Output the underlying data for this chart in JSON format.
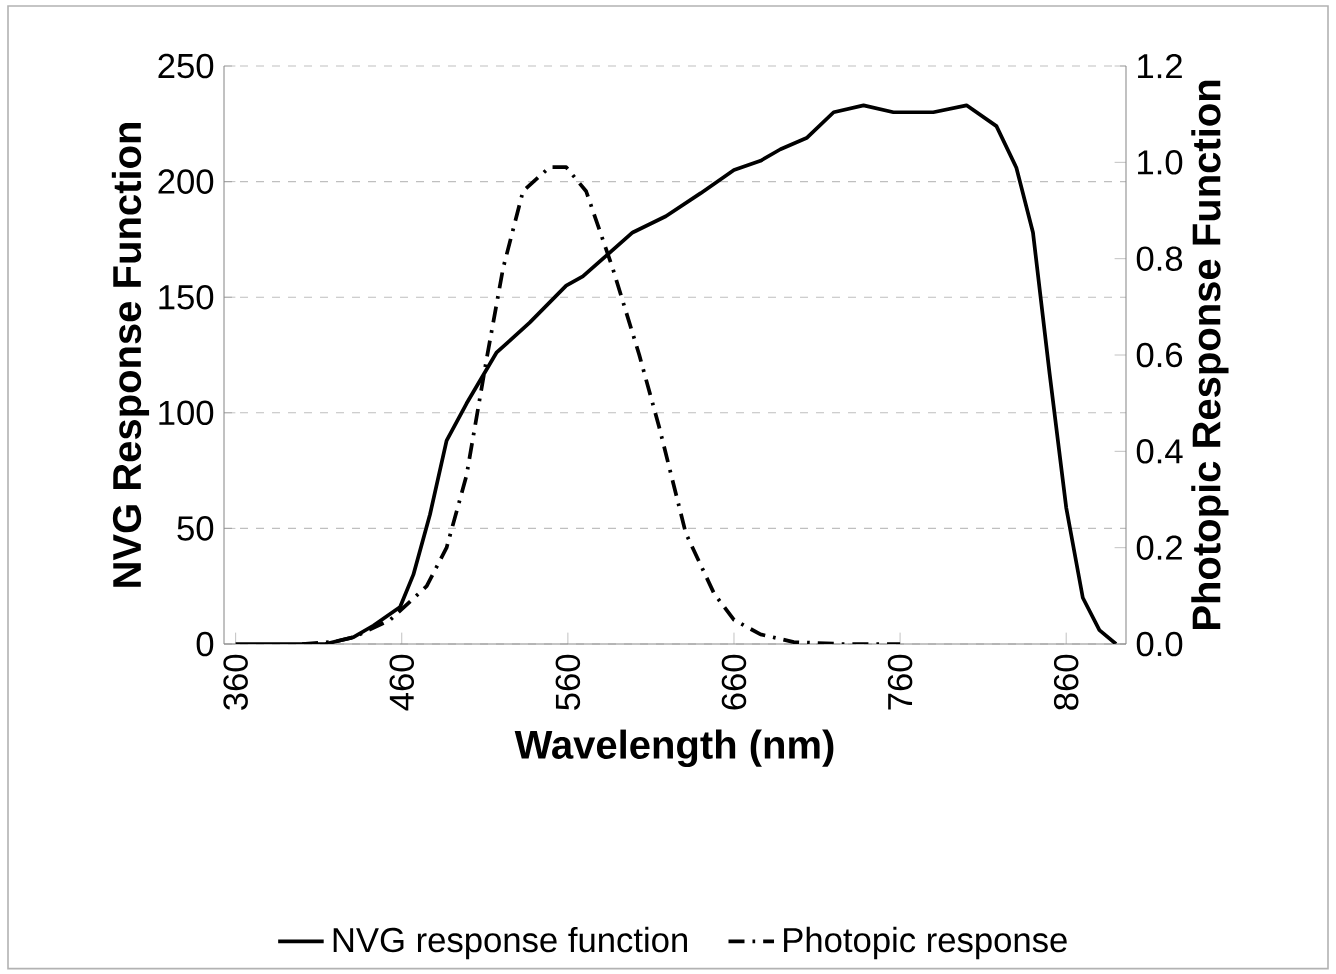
{
  "chart_data": {
    "type": "line",
    "xlabel": "Wavelength (nm)",
    "ylabel": "NVG Response Function",
    "y2label": "Photopic Response Function",
    "xlim": [
      353,
      896
    ],
    "xticks": [
      360,
      460,
      560,
      660,
      760,
      860
    ],
    "ylim": [
      0,
      250
    ],
    "yticks": [
      0,
      50,
      100,
      150,
      200,
      250
    ],
    "y2lim": [
      0,
      1.2
    ],
    "y2ticks": [
      {
        "value": 0,
        "label": "0.0"
      },
      {
        "value": 0.2,
        "label": "0.2"
      },
      {
        "value": 0.4,
        "label": "0.4"
      },
      {
        "value": 0.6,
        "label": "0.6"
      },
      {
        "value": 0.8,
        "label": "0.8"
      },
      {
        "value": 1.0,
        "label": "1.0"
      },
      {
        "value": 1.2,
        "label": "1.2"
      }
    ],
    "grid": "y",
    "legend": "bottom",
    "marker": "none",
    "series": [
      {
        "name": "NVG response function",
        "color": "#000000",
        "line_style": "solid",
        "x": [
          360,
          380,
          400,
          414,
          431,
          443,
          459,
          467,
          477,
          487,
          499,
          517,
          537,
          559,
          569,
          599,
          619,
          640,
          660,
          676,
          688,
          704,
          720,
          738,
          756,
          780,
          800,
          818,
          830,
          840,
          850,
          860,
          870,
          880,
          890
        ],
        "values": [
          0,
          0,
          0,
          0,
          3,
          8,
          16,
          30,
          56,
          88,
          104,
          126,
          139,
          155,
          159,
          178,
          185,
          195,
          205,
          209,
          214,
          219,
          230,
          233,
          230,
          230,
          233,
          224,
          206,
          178,
          117,
          59,
          20,
          6,
          0
        ]
      },
      {
        "name": "Photopic response",
        "color": "#000000",
        "line_style": "dashdot",
        "axis": "y2",
        "x": [
          400,
          420,
          431,
          453,
          475,
          487,
          499,
          511,
          521,
          533,
          549,
          559,
          571,
          587,
          603,
          615,
          631,
          648,
          660,
          676,
          696,
          724,
          760
        ],
        "values": [
          0,
          0.005,
          0.014,
          0.05,
          0.12,
          0.2,
          0.35,
          0.59,
          0.78,
          0.94,
          0.99,
          0.99,
          0.94,
          0.78,
          0.6,
          0.45,
          0.23,
          0.105,
          0.05,
          0.02,
          0.004,
          0,
          0
        ]
      }
    ]
  }
}
